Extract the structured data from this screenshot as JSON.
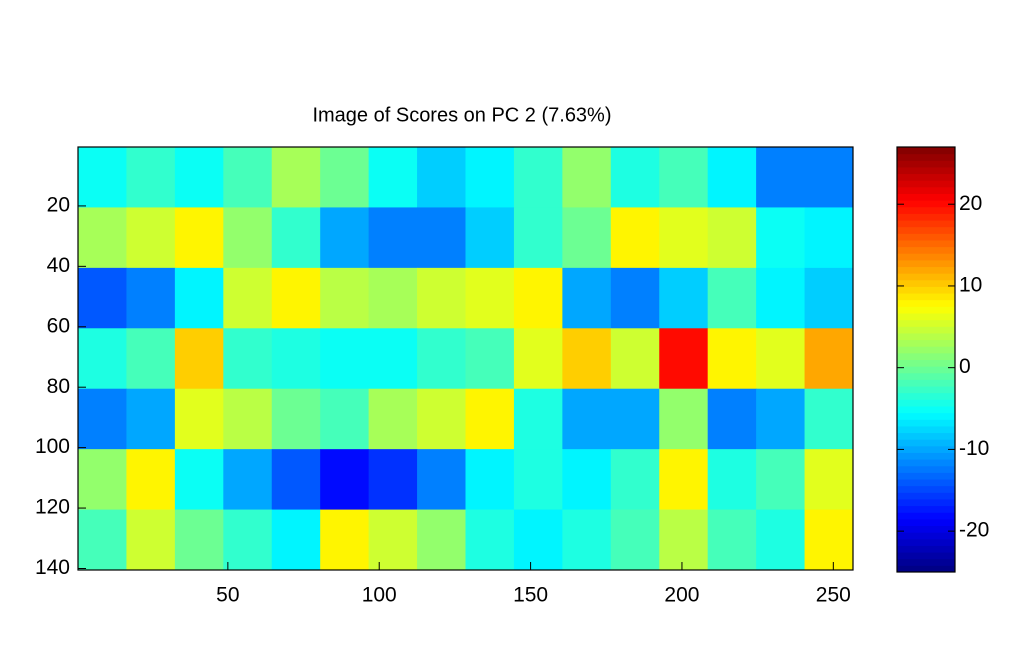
{
  "chart_data": {
    "type": "heatmap",
    "title": "Image of Scores on PC 2 (7.63%)",
    "x": [
      8.5,
      24.5,
      40.5,
      56.5,
      72.5,
      88.5,
      104.5,
      120.5,
      136.5,
      152.5,
      168.5,
      184.5,
      200.5,
      216.5,
      232.5,
      248.5
    ],
    "y": [
      10.5,
      30.5,
      50.5,
      70.5,
      90.5,
      110.5,
      130.5
    ],
    "values": [
      [
        -5,
        -3,
        -5,
        -2,
        3,
        0,
        -5,
        -8,
        -6,
        -3,
        2,
        -4,
        -2,
        -6,
        -12,
        -12
      ],
      [
        3,
        5,
        8,
        2,
        -3,
        -10,
        -12,
        -12,
        -8,
        -3,
        0,
        8,
        6,
        5,
        -5,
        -6
      ],
      [
        -14,
        -12,
        -6,
        5,
        8,
        4,
        3,
        5,
        6,
        8,
        -10,
        -12,
        -8,
        -2,
        -6,
        -8
      ],
      [
        -4,
        -2,
        10,
        -3,
        -4,
        -5,
        -5,
        -3,
        -2,
        6,
        10,
        5,
        20,
        8,
        6,
        12
      ],
      [
        -12,
        -10,
        6,
        4,
        0,
        -2,
        3,
        5,
        8,
        -4,
        -10,
        -10,
        2,
        -12,
        -10,
        -3
      ],
      [
        2,
        8,
        -5,
        -10,
        -14,
        -18,
        -16,
        -12,
        -6,
        -4,
        -6,
        -3,
        8,
        -4,
        -2,
        6
      ],
      [
        -2,
        5,
        0,
        -3,
        -6,
        8,
        5,
        2,
        -4,
        -6,
        -4,
        -2,
        4,
        -2,
        -4,
        8
      ]
    ],
    "xlim": [
      0.5,
      256.5
    ],
    "xticks": [
      50,
      100,
      150,
      200,
      250
    ],
    "ylim": [
      0.5,
      140.5
    ],
    "yticks": [
      20,
      40,
      60,
      80,
      100,
      120,
      140
    ],
    "y_reversed": true,
    "clim": [
      -25,
      27
    ],
    "cticks": [
      -20,
      -10,
      0,
      10,
      20
    ],
    "colormap": "jet"
  }
}
